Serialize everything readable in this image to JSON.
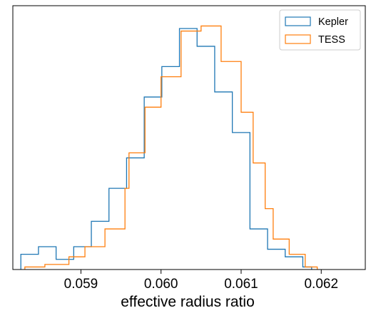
{
  "chart_data": {
    "type": "histogram",
    "xlabel": "effective radius ratio",
    "ylabel": "",
    "xlim": [
      0.05815,
      0.06255
    ],
    "ylim": [
      0,
      52
    ],
    "xticks": [
      {
        "value": 0.059,
        "label": "0.059"
      },
      {
        "value": 0.06,
        "label": "0.060"
      },
      {
        "value": 0.061,
        "label": "0.061"
      },
      {
        "value": 0.062,
        "label": "0.062"
      }
    ],
    "grid": false,
    "legend_position": "top-right",
    "series": [
      {
        "name": "Kepler",
        "color": "#1f77b4",
        "bin_edges": [
          0.05825,
          0.05836,
          0.05847,
          0.05858,
          0.05869,
          0.0588,
          0.05891,
          0.05902,
          0.05913,
          0.05924,
          0.05936,
          0.05947,
          0.05958,
          0.05969,
          0.0598,
          0.05991,
          0.06002,
          0.06013,
          0.06024,
          0.06035,
          0.06046,
          0.06057,
          0.06068,
          0.06079,
          0.0609,
          0.06101,
          0.06112,
          0.06123,
          0.06134,
          0.06145,
          0.06156,
          0.06167,
          0.06178,
          0.06189
        ],
        "bins": [
          0.05825,
          0.05836,
          0.05847,
          0.05858,
          0.05869,
          0.0588,
          0.05891,
          0.05902,
          0.05913,
          0.05924,
          0.05935,
          0.05946,
          0.05957,
          0.05968,
          0.05979,
          0.0599,
          0.06001,
          0.06012,
          0.06023,
          0.06034,
          0.06045,
          0.06056,
          0.06067,
          0.06078,
          0.06089,
          0.061,
          0.06111,
          0.06122,
          0.06133,
          0.06144,
          0.06155,
          0.06166,
          0.06177,
          0.06188
        ],
        "counts": [
          3,
          3,
          4.5,
          4.5,
          2,
          2,
          4.5,
          4.5,
          9.5,
          9.5,
          16,
          16,
          22,
          22,
          34,
          34,
          40,
          40,
          47.5,
          47.5,
          44,
          44,
          35,
          35,
          27,
          27,
          8,
          8,
          4,
          4,
          2.5,
          2.5,
          0.5
        ]
      },
      {
        "name": "TESS",
        "color": "#ff7f0e",
        "bins": [
          0.0583,
          0.05855,
          0.05885,
          0.05905,
          0.0593,
          0.05955,
          0.0596,
          0.0598,
          0.06,
          0.06025,
          0.0605,
          0.06075,
          0.061,
          0.06115,
          0.0613,
          0.0614,
          0.0616,
          0.0618,
          0.06195
        ],
        "counts": [
          0.5,
          1,
          2.5,
          4.5,
          8,
          16,
          23,
          32,
          38,
          47,
          48,
          41,
          31,
          21,
          12,
          6,
          3,
          0.5
        ]
      }
    ]
  }
}
